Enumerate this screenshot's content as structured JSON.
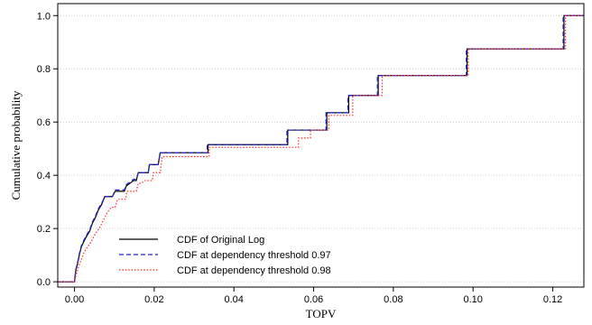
{
  "chart_data": {
    "type": "line",
    "title": "",
    "xlabel": "TOPV",
    "ylabel": "Cumulative probability",
    "xlim": [
      -0.0042,
      0.1278
    ],
    "ylim": [
      -0.02,
      1.045
    ],
    "xticks": [
      0.0,
      0.02,
      0.04,
      0.06,
      0.08,
      0.1,
      0.12
    ],
    "xtick_labels": [
      "0.00",
      "0.02",
      "0.04",
      "0.06",
      "0.08",
      "0.10",
      "0.12"
    ],
    "yticks": [
      0.0,
      0.2,
      0.4,
      0.6,
      0.8,
      1.0
    ],
    "ytick_labels": [
      "0.0",
      "0.2",
      "0.4",
      "0.6",
      "0.8",
      "1.0"
    ],
    "grid": "horizontal dotted",
    "legend_position": "bottom-left",
    "series": [
      {
        "name": "CDF of Original Log",
        "color": "#000000",
        "style": "solid",
        "points": [
          [
            -0.0042,
            0.0
          ],
          [
            0.0,
            0.0
          ],
          [
            0.0003,
            0.04
          ],
          [
            0.0008,
            0.07
          ],
          [
            0.0012,
            0.1
          ],
          [
            0.0017,
            0.13
          ],
          [
            0.0023,
            0.15
          ],
          [
            0.003,
            0.17
          ],
          [
            0.0038,
            0.19
          ],
          [
            0.0045,
            0.22
          ],
          [
            0.0052,
            0.24
          ],
          [
            0.006,
            0.27
          ],
          [
            0.0068,
            0.29
          ],
          [
            0.0076,
            0.32
          ],
          [
            0.0095,
            0.32
          ],
          [
            0.0102,
            0.34
          ],
          [
            0.0125,
            0.34
          ],
          [
            0.013,
            0.36
          ],
          [
            0.0148,
            0.38
          ],
          [
            0.0155,
            0.38
          ],
          [
            0.016,
            0.41
          ],
          [
            0.0185,
            0.41
          ],
          [
            0.0188,
            0.44
          ],
          [
            0.021,
            0.44
          ],
          [
            0.0215,
            0.485
          ],
          [
            0.0335,
            0.485
          ],
          [
            0.0335,
            0.515
          ],
          [
            0.0535,
            0.515
          ],
          [
            0.0535,
            0.57
          ],
          [
            0.0633,
            0.57
          ],
          [
            0.0633,
            0.635
          ],
          [
            0.0688,
            0.635
          ],
          [
            0.0688,
            0.7
          ],
          [
            0.0762,
            0.7
          ],
          [
            0.0762,
            0.775
          ],
          [
            0.0985,
            0.775
          ],
          [
            0.0985,
            0.875
          ],
          [
            0.1228,
            0.875
          ],
          [
            0.1228,
            1.0
          ],
          [
            0.1278,
            1.0
          ]
        ]
      },
      {
        "name": "CDF at dependency threshold 0.97",
        "color": "#2222dd",
        "style": "dashed",
        "points": [
          [
            -0.0042,
            0.0
          ],
          [
            0.0,
            0.0
          ],
          [
            0.0003,
            0.045
          ],
          [
            0.0008,
            0.075
          ],
          [
            0.0012,
            0.105
          ],
          [
            0.0017,
            0.135
          ],
          [
            0.0023,
            0.155
          ],
          [
            0.003,
            0.175
          ],
          [
            0.0038,
            0.195
          ],
          [
            0.0045,
            0.225
          ],
          [
            0.0052,
            0.245
          ],
          [
            0.006,
            0.275
          ],
          [
            0.0068,
            0.295
          ],
          [
            0.0076,
            0.32
          ],
          [
            0.0095,
            0.32
          ],
          [
            0.0102,
            0.345
          ],
          [
            0.0125,
            0.345
          ],
          [
            0.013,
            0.365
          ],
          [
            0.0148,
            0.385
          ],
          [
            0.0155,
            0.385
          ],
          [
            0.016,
            0.41
          ],
          [
            0.0185,
            0.41
          ],
          [
            0.0188,
            0.44
          ],
          [
            0.021,
            0.44
          ],
          [
            0.0215,
            0.485
          ],
          [
            0.0333,
            0.485
          ],
          [
            0.0333,
            0.515
          ],
          [
            0.0533,
            0.515
          ],
          [
            0.0533,
            0.57
          ],
          [
            0.0631,
            0.57
          ],
          [
            0.0631,
            0.635
          ],
          [
            0.0686,
            0.635
          ],
          [
            0.0686,
            0.7
          ],
          [
            0.076,
            0.7
          ],
          [
            0.076,
            0.775
          ],
          [
            0.0983,
            0.775
          ],
          [
            0.0983,
            0.875
          ],
          [
            0.1226,
            0.875
          ],
          [
            0.1226,
            1.0
          ],
          [
            0.1278,
            1.0
          ]
        ]
      },
      {
        "name": "CDF at dependency threshold 0.98",
        "color": "#ff3333",
        "style": "dotted",
        "points": [
          [
            -0.0042,
            0.0
          ],
          [
            0.0,
            0.0
          ],
          [
            0.0005,
            0.03
          ],
          [
            0.001,
            0.055
          ],
          [
            0.0016,
            0.08
          ],
          [
            0.0024,
            0.11
          ],
          [
            0.0032,
            0.13
          ],
          [
            0.0042,
            0.15
          ],
          [
            0.0052,
            0.18
          ],
          [
            0.0062,
            0.2
          ],
          [
            0.0072,
            0.23
          ],
          [
            0.0082,
            0.26
          ],
          [
            0.0092,
            0.28
          ],
          [
            0.0102,
            0.28
          ],
          [
            0.0108,
            0.31
          ],
          [
            0.0128,
            0.31
          ],
          [
            0.0132,
            0.34
          ],
          [
            0.0155,
            0.34
          ],
          [
            0.016,
            0.37
          ],
          [
            0.0168,
            0.37
          ],
          [
            0.0175,
            0.38
          ],
          [
            0.0195,
            0.38
          ],
          [
            0.0198,
            0.41
          ],
          [
            0.0215,
            0.41
          ],
          [
            0.022,
            0.47
          ],
          [
            0.0338,
            0.47
          ],
          [
            0.0338,
            0.505
          ],
          [
            0.0562,
            0.505
          ],
          [
            0.0562,
            0.54
          ],
          [
            0.0592,
            0.54
          ],
          [
            0.0592,
            0.57
          ],
          [
            0.0638,
            0.57
          ],
          [
            0.0638,
            0.625
          ],
          [
            0.0698,
            0.625
          ],
          [
            0.0698,
            0.7
          ],
          [
            0.0772,
            0.7
          ],
          [
            0.0772,
            0.775
          ],
          [
            0.0988,
            0.775
          ],
          [
            0.0988,
            0.875
          ],
          [
            0.1232,
            0.875
          ],
          [
            0.1232,
            1.0
          ],
          [
            0.1278,
            1.0
          ]
        ]
      }
    ]
  }
}
